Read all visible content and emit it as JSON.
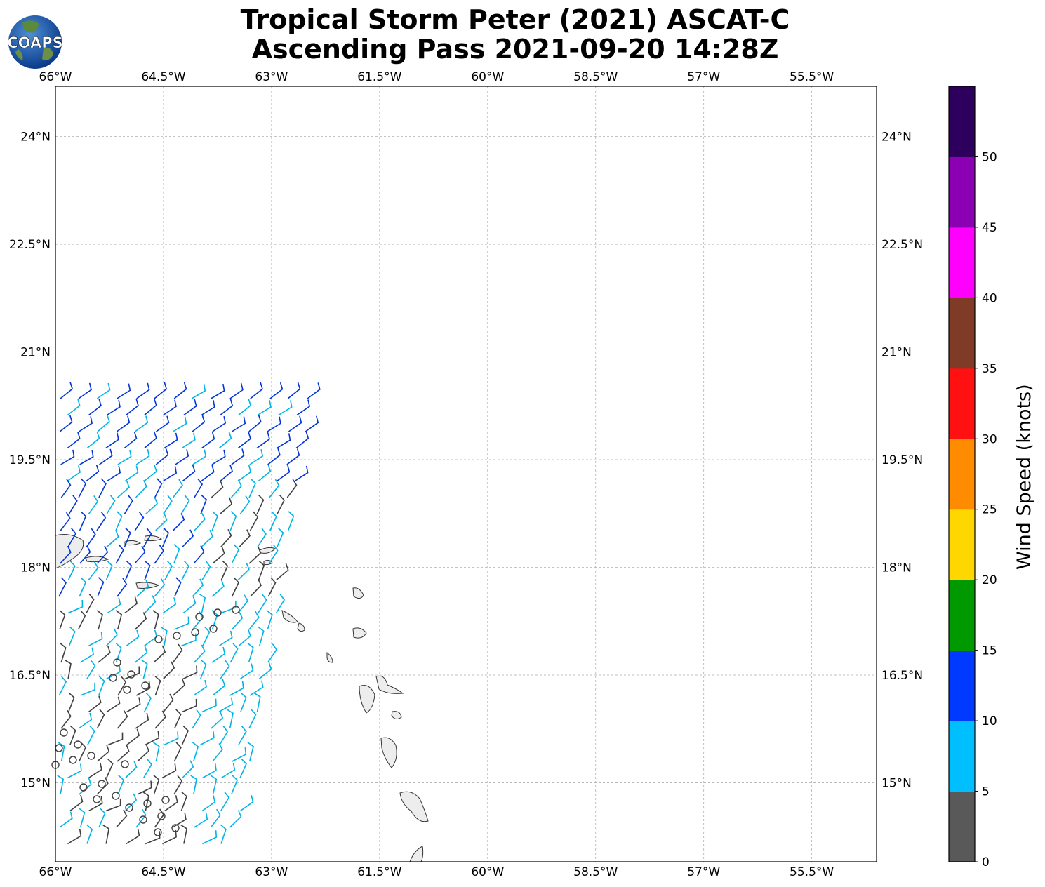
{
  "title": {
    "line1": "Tropical Storm Peter (2021) ASCAT-C",
    "line2": "Ascending Pass 2021-09-20 14:28Z"
  },
  "logo": {
    "text": "COAPS"
  },
  "map": {
    "lon_labels": [
      "66°W",
      "64.5°W",
      "63°W",
      "61.5°W",
      "60°W",
      "58.5°W",
      "57°W",
      "55.5°W"
    ],
    "lat_labels": [
      "24°N",
      "22.5°N",
      "21°N",
      "19.5°N",
      "18°N",
      "16.5°N",
      "15°N"
    ],
    "lon_range": [
      -66,
      -54.6
    ],
    "lat_range": [
      13.9,
      24.7
    ],
    "gridlines": true
  },
  "colorbar": {
    "label": "Wind Speed (knots)",
    "ticks": [
      "0",
      "5",
      "10",
      "15",
      "20",
      "25",
      "30",
      "35",
      "40",
      "45",
      "50"
    ],
    "colors": [
      "#595959",
      "#00bfff",
      "#0039ff",
      "#009900",
      "#ffd700",
      "#ff8c00",
      "#ff1111",
      "#7f3b26",
      "#ff00ff",
      "#8b00b3",
      "#2d005d"
    ]
  },
  "wind_colors": {
    "calm": "#404040",
    "light": "#00b4e6",
    "moderate": "#0035d9"
  }
}
